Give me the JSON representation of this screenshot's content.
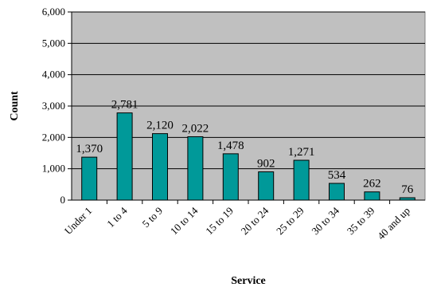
{
  "chart_data": {
    "type": "bar",
    "title": "",
    "xlabel": "Service",
    "ylabel": "Count",
    "categories": [
      "Under 1",
      "1 to 4",
      "5 to 9",
      "10 to 14",
      "15 to 19",
      "20 to 24",
      "25 to 29",
      "30 to 34",
      "35 to 39",
      "40 and up"
    ],
    "values": [
      1370,
      2781,
      2120,
      2022,
      1478,
      902,
      1271,
      534,
      262,
      76
    ],
    "value_labels": [
      "1,370",
      "2,781",
      "2,120",
      "2,022",
      "1,478",
      "902",
      "1,271",
      "534",
      "262",
      "76"
    ],
    "ylim": [
      0,
      6000
    ],
    "yticks": [
      0,
      1000,
      2000,
      3000,
      4000,
      5000,
      6000
    ],
    "ytick_labels": [
      "0",
      "1,000",
      "2,000",
      "3,000",
      "4,000",
      "5,000",
      "6,000"
    ],
    "grid": true,
    "legend": "none",
    "colors": {
      "bar": "#009999",
      "plot_background": "#C0C0C0",
      "gridline": "#000000"
    }
  }
}
